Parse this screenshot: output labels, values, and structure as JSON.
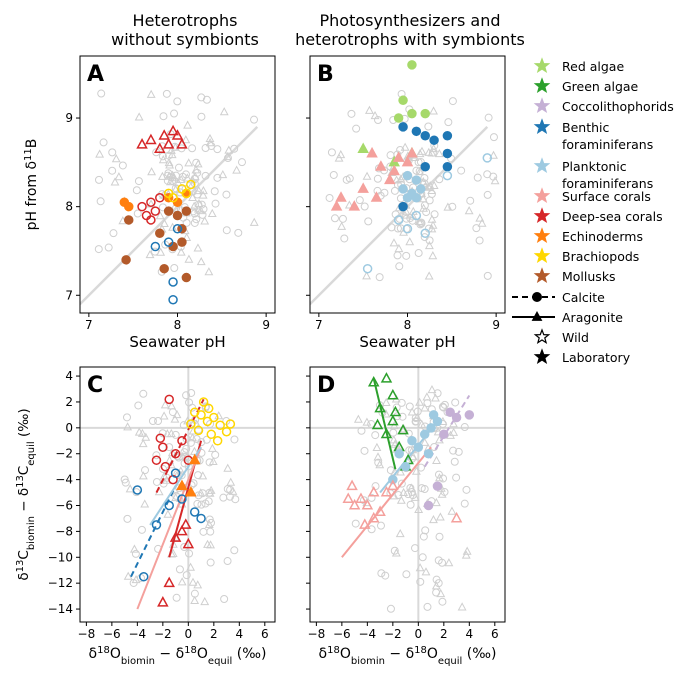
{
  "column_titles": [
    "Heterotrophs\nwithout symbionts",
    "Photosynthesizers and\nheterotrophs with symbionts"
  ],
  "legend": {
    "groups": [
      {
        "label": "Red algae",
        "color": "#a6d96a"
      },
      {
        "label": "Green algae",
        "color": "#2ca02c"
      },
      {
        "label": "Coccolithophorids",
        "color": "#c5b0d5"
      },
      {
        "label": "Benthic\nforaminiferans",
        "color": "#1f77b4"
      },
      {
        "label": "Planktonic\nforaminiferans",
        "color": "#9ecae1"
      },
      {
        "label": "Surface corals",
        "color": "#f4a09c"
      },
      {
        "label": "Deep-sea corals",
        "color": "#d62728"
      },
      {
        "label": "Echinoderms",
        "color": "#ff7f0e"
      },
      {
        "label": "Brachiopods",
        "color": "#ffd700"
      },
      {
        "label": "Mollusks",
        "color": "#b35a2a"
      }
    ],
    "mineralogy": [
      {
        "label": "Calcite",
        "marker": "circle",
        "line": "dashed"
      },
      {
        "label": "Aragonite",
        "marker": "triangle",
        "line": "solid"
      }
    ],
    "origin": [
      {
        "label": "Wild",
        "marker": "open-star"
      },
      {
        "label": "Laboratory",
        "marker": "filled-star"
      }
    ]
  },
  "chart_data": [
    {
      "panel": "A",
      "type": "scatter",
      "xlabel": "Seawater pH",
      "ylabel": "pH from δ11B",
      "xlim": [
        6.9,
        9.1
      ],
      "ylim": [
        6.8,
        9.7
      ],
      "xticks": [
        "7",
        "8",
        "9"
      ],
      "yticks": [
        "7",
        "8",
        "9"
      ],
      "reference_line": "1:1",
      "series": [
        {
          "name": "Deep-sea corals",
          "marker": "triangle",
          "filled": false,
          "points": [
            [
              7.6,
              8.7
            ],
            [
              7.7,
              8.75
            ],
            [
              7.85,
              8.8
            ],
            [
              7.95,
              8.85
            ],
            [
              8.0,
              8.8
            ],
            [
              7.9,
              8.7
            ],
            [
              7.8,
              8.65
            ],
            [
              8.05,
              8.7
            ]
          ]
        },
        {
          "name": "Deep-sea corals",
          "marker": "circle",
          "filled": false,
          "points": [
            [
              7.6,
              8.0
            ],
            [
              7.65,
              7.9
            ],
            [
              7.7,
              8.05
            ],
            [
              7.75,
              7.95
            ],
            [
              7.8,
              8.1
            ],
            [
              7.7,
              7.85
            ]
          ]
        },
        {
          "name": "Echinoderms",
          "marker": "circle",
          "filled": true,
          "points": [
            [
              7.4,
              8.05
            ],
            [
              7.45,
              8.0
            ],
            [
              7.9,
              8.1
            ],
            [
              8.0,
              8.05
            ],
            [
              8.1,
              8.15
            ]
          ]
        },
        {
          "name": "Brachiopods",
          "marker": "circle",
          "filled": false,
          "points": [
            [
              7.95,
              8.1
            ],
            [
              8.05,
              8.2
            ],
            [
              8.1,
              8.15
            ],
            [
              8.15,
              8.25
            ],
            [
              7.9,
              8.15
            ]
          ]
        },
        {
          "name": "Mollusks",
          "marker": "circle",
          "filled": true,
          "points": [
            [
              7.42,
              7.4
            ],
            [
              7.45,
              7.85
            ],
            [
              7.8,
              7.7
            ],
            [
              7.95,
              7.55
            ],
            [
              8.05,
              7.6
            ],
            [
              8.1,
              7.2
            ],
            [
              7.85,
              7.3
            ],
            [
              8.0,
              7.9
            ],
            [
              8.1,
              7.95
            ],
            [
              7.9,
              7.95
            ],
            [
              8.05,
              7.75
            ]
          ]
        },
        {
          "name": "Benthic foraminiferans",
          "marker": "circle",
          "filled": false,
          "points": [
            [
              7.95,
              6.95
            ],
            [
              7.95,
              7.15
            ],
            [
              7.75,
              7.55
            ],
            [
              7.9,
              7.6
            ],
            [
              8.0,
              7.75
            ]
          ]
        }
      ]
    },
    {
      "panel": "B",
      "type": "scatter",
      "xlabel": "Seawater pH",
      "ylabel": "",
      "xlim": [
        6.9,
        9.1
      ],
      "ylim": [
        6.8,
        9.7
      ],
      "xticks": [
        "7",
        "8",
        "9"
      ],
      "yticks": [],
      "reference_line": "1:1",
      "series": [
        {
          "name": "Red algae",
          "marker": "circle",
          "filled": true,
          "points": [
            [
              8.05,
              9.6
            ],
            [
              7.95,
              9.2
            ],
            [
              8.05,
              9.05
            ],
            [
              8.2,
              9.05
            ],
            [
              7.9,
              9.0
            ]
          ]
        },
        {
          "name": "Red algae",
          "marker": "triangle",
          "filled": true,
          "points": [
            [
              7.5,
              8.65
            ],
            [
              7.85,
              8.5
            ],
            [
              8.05,
              8.6
            ]
          ]
        },
        {
          "name": "Benthic foraminiferans",
          "marker": "circle",
          "filled": true,
          "points": [
            [
              7.95,
              8.9
            ],
            [
              8.1,
              8.85
            ],
            [
              8.2,
              8.8
            ],
            [
              8.3,
              8.75
            ],
            [
              8.45,
              8.8
            ],
            [
              8.45,
              8.6
            ],
            [
              8.2,
              8.45
            ],
            [
              8.45,
              8.45
            ],
            [
              7.95,
              8.0
            ]
          ]
        },
        {
          "name": "Planktonic foraminiferans",
          "marker": "circle",
          "filled": true,
          "points": [
            [
              7.95,
              8.2
            ],
            [
              8.0,
              8.1
            ],
            [
              8.05,
              8.15
            ],
            [
              8.1,
              8.1
            ],
            [
              8.15,
              8.2
            ],
            [
              8.0,
              8.35
            ],
            [
              8.1,
              8.3
            ]
          ]
        },
        {
          "name": "Planktonic foraminiferans",
          "marker": "circle",
          "filled": false,
          "points": [
            [
              7.55,
              7.3
            ],
            [
              7.9,
              7.85
            ],
            [
              8.0,
              7.75
            ],
            [
              8.1,
              7.9
            ],
            [
              8.2,
              7.7
            ],
            [
              8.45,
              8.35
            ],
            [
              8.9,
              8.55
            ]
          ]
        },
        {
          "name": "Surface corals",
          "marker": "triangle",
          "filled": true,
          "points": [
            [
              7.2,
              8.0
            ],
            [
              7.25,
              8.1
            ],
            [
              7.4,
              8.0
            ],
            [
              7.5,
              8.2
            ],
            [
              7.7,
              8.45
            ],
            [
              7.85,
              8.4
            ],
            [
              7.9,
              8.55
            ],
            [
              8.0,
              8.5
            ],
            [
              8.05,
              8.6
            ],
            [
              7.65,
              8.1
            ],
            [
              7.6,
              8.6
            ],
            [
              7.8,
              8.3
            ]
          ]
        }
      ]
    },
    {
      "panel": "C",
      "type": "scatter",
      "xlabel": "δ18Obiomin − δ18Oequil (‰)",
      "ylabel": "δ13Cbiomin − δ13Cequil (‰)",
      "xlim": [
        -8.5,
        6.8
      ],
      "ylim": [
        -15,
        4.7
      ],
      "xticks": [
        "−8",
        "−6",
        "−4",
        "−2",
        "0",
        "2",
        "4",
        "6"
      ],
      "yticks": [
        "4",
        "2",
        "0",
        "−2",
        "−4",
        "−6",
        "−8",
        "−10",
        "−12",
        "−14"
      ],
      "series": [
        {
          "name": "Brachiopods",
          "marker": "circle",
          "filled": false,
          "points": [
            [
              0.5,
              1.2
            ],
            [
              1.0,
              1.0
            ],
            [
              1.5,
              0.5
            ],
            [
              2.0,
              0.8
            ],
            [
              2.5,
              0.2
            ],
            [
              3.0,
              -0.3
            ],
            [
              1.8,
              -0.5
            ],
            [
              0.8,
              -0.2
            ],
            [
              1.2,
              2.0
            ],
            [
              2.3,
              -1.0
            ],
            [
              3.3,
              0.3
            ],
            [
              0.2,
              0.3
            ],
            [
              1.6,
              1.5
            ]
          ]
        },
        {
          "name": "Deep-sea corals",
          "marker": "circle",
          "filled": false,
          "points": [
            [
              -1.5,
              2.2
            ],
            [
              -2.0,
              -1.5
            ],
            [
              -1.0,
              -2.0
            ],
            [
              -2.5,
              -2.5
            ],
            [
              -1.8,
              -3.0
            ],
            [
              -0.5,
              -1.0
            ],
            [
              -1.2,
              -4.0
            ],
            [
              -2.2,
              -0.8
            ],
            [
              0.0,
              -2.5
            ]
          ]
        },
        {
          "name": "Deep-sea corals",
          "marker": "triangle",
          "filled": false,
          "points": [
            [
              -0.5,
              -8.0
            ],
            [
              0.0,
              -9.0
            ],
            [
              -1.0,
              -8.5
            ],
            [
              -1.5,
              -12.0
            ],
            [
              -2.0,
              -13.5
            ],
            [
              -0.2,
              -7.5
            ]
          ]
        },
        {
          "name": "Benthic foraminiferans",
          "marker": "circle",
          "filled": false,
          "points": [
            [
              -4.0,
              -4.8
            ],
            [
              -3.5,
              -11.5
            ],
            [
              -2.5,
              -7.5
            ],
            [
              -1.5,
              -6.0
            ],
            [
              -0.5,
              -5.5
            ],
            [
              0.5,
              -6.5
            ],
            [
              1.0,
              -7.0
            ],
            [
              -1.0,
              -3.5
            ]
          ]
        },
        {
          "name": "Echinoderms",
          "marker": "triangle",
          "filled": true,
          "points": [
            [
              -0.5,
              -4.5
            ],
            [
              0.5,
              -2.5
            ],
            [
              0.2,
              -5.0
            ]
          ]
        }
      ],
      "fit_lines": [
        {
          "name": "Benthic foraminiferans",
          "style": "dashed",
          "points": [
            [
              -4.5,
              -11.5
            ],
            [
              -1.0,
              -4.5
            ]
          ]
        },
        {
          "name": "Deep-sea corals",
          "style": "dashed",
          "points": [
            [
              -2.5,
              -5.0
            ],
            [
              1.2,
              2.2
            ]
          ]
        },
        {
          "name": "Deep-sea corals",
          "style": "solid",
          "points": [
            [
              -1.5,
              -10.0
            ],
            [
              1.0,
              -1.0
            ]
          ]
        },
        {
          "name": "Surface corals",
          "style": "solid",
          "points": [
            [
              -4.0,
              -14.0
            ],
            [
              1.0,
              -1.5
            ]
          ]
        },
        {
          "name": "Planktonic foraminiferans",
          "style": "solid",
          "points": [
            [
              -3.0,
              -7.5
            ],
            [
              1.0,
              -1.5
            ]
          ]
        }
      ]
    },
    {
      "panel": "D",
      "type": "scatter",
      "xlabel": "δ18Obiomin − δ18Oequil (‰)",
      "ylabel": "",
      "xlim": [
        -8.5,
        6.8
      ],
      "ylim": [
        -15,
        4.7
      ],
      "xticks": [
        "−8",
        "−6",
        "−4",
        "−2",
        "0",
        "2",
        "4",
        "6"
      ],
      "yticks": [],
      "series": [
        {
          "name": "Green algae",
          "marker": "triangle",
          "filled": false,
          "points": [
            [
              -3.5,
              3.5
            ],
            [
              -2.5,
              3.8
            ],
            [
              -2.0,
              2.5
            ],
            [
              -3.0,
              1.5
            ],
            [
              -2.0,
              0.5
            ],
            [
              -1.5,
              -1.5
            ],
            [
              -1.0,
              -3.0
            ],
            [
              -2.5,
              -0.5
            ],
            [
              -1.8,
              1.2
            ],
            [
              -0.8,
              -2.5
            ],
            [
              -3.2,
              0.2
            ],
            [
              -1.2,
              -0.2
            ]
          ]
        },
        {
          "name": "Planktonic foraminiferans",
          "marker": "circle",
          "filled": true,
          "points": [
            [
              -1.5,
              -2.0
            ],
            [
              -0.5,
              -1.0
            ],
            [
              0.5,
              -0.5
            ],
            [
              1.0,
              0.0
            ],
            [
              1.5,
              0.5
            ],
            [
              -1.0,
              -3.0
            ],
            [
              0.0,
              -1.5
            ],
            [
              0.8,
              -2.0
            ],
            [
              -2.0,
              -4.0
            ],
            [
              1.2,
              1.0
            ]
          ]
        },
        {
          "name": "Coccolithophorids",
          "marker": "circle",
          "filled": true,
          "points": [
            [
              2.5,
              1.2
            ],
            [
              3.0,
              0.8
            ],
            [
              4.0,
              1.0
            ],
            [
              2.0,
              -0.5
            ],
            [
              0.8,
              -6.0
            ],
            [
              1.5,
              -4.5
            ]
          ]
        },
        {
          "name": "Surface corals",
          "marker": "triangle",
          "filled": false,
          "points": [
            [
              -5.5,
              -5.5
            ],
            [
              -5.0,
              -6.0
            ],
            [
              -4.5,
              -5.5
            ],
            [
              -4.0,
              -6.0
            ],
            [
              -3.5,
              -7.0
            ],
            [
              -3.0,
              -6.5
            ],
            [
              -2.5,
              -5.0
            ],
            [
              -2.0,
              -4.5
            ],
            [
              -4.2,
              -7.5
            ],
            [
              -3.5,
              -5.0
            ],
            [
              3.0,
              -7.0
            ],
            [
              -5.2,
              -4.5
            ]
          ]
        }
      ],
      "fit_lines": [
        {
          "name": "Green algae",
          "style": "solid",
          "points": [
            [
              -3.5,
              3.8
            ],
            [
              -1.8,
              -3.2
            ]
          ]
        },
        {
          "name": "Planktonic foraminiferans",
          "style": "solid",
          "points": [
            [
              -3.0,
              -5.0
            ],
            [
              1.5,
              0.5
            ]
          ]
        },
        {
          "name": "Coccolithophorids",
          "style": "dashed",
          "points": [
            [
              0.5,
              -3.0
            ],
            [
              4.0,
              2.5
            ]
          ]
        },
        {
          "name": "Surface corals",
          "style": "solid",
          "points": [
            [
              -6.0,
              -10.0
            ],
            [
              1.0,
              -1.5
            ]
          ]
        }
      ]
    }
  ]
}
